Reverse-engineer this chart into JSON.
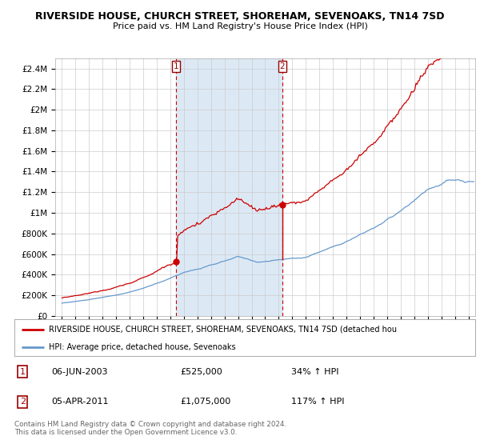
{
  "title": "RIVERSIDE HOUSE, CHURCH STREET, SHOREHAM, SEVENOAKS, TN14 7SD",
  "subtitle": "Price paid vs. HM Land Registry's House Price Index (HPI)",
  "background_color": "#ffffff",
  "plot_bg_color": "#ffffff",
  "grid_color": "#cccccc",
  "hpi_fill_color": "#dce9f5",
  "sale1_date_num": 2003.43,
  "sale1_price": 525000,
  "sale1_label": "06-JUN-2003",
  "sale1_hpi_pct": "34%",
  "sale2_date_num": 2011.26,
  "sale2_price": 1075000,
  "sale2_label": "05-APR-2011",
  "sale2_hpi_pct": "117%",
  "ylim": [
    0,
    2500000
  ],
  "xlim": [
    1994.5,
    2025.5
  ],
  "red_color": "#cc0000",
  "blue_color": "#6699cc",
  "legend_text1": "RIVERSIDE HOUSE, CHURCH STREET, SHOREHAM, SEVENOAKS, TN14 7SD (detached hou",
  "legend_text2": "HPI: Average price, detached house, Sevenoaks",
  "footer1": "Contains HM Land Registry data © Crown copyright and database right 2024.",
  "footer2": "This data is licensed under the Open Government Licence v3.0.",
  "yticks": [
    0,
    200000,
    400000,
    600000,
    800000,
    1000000,
    1200000,
    1400000,
    1600000,
    1800000,
    2000000,
    2200000,
    2400000
  ],
  "ytick_labels": [
    "£0",
    "£200K",
    "£400K",
    "£600K",
    "£800K",
    "£1M",
    "£1.2M",
    "£1.4M",
    "£1.6M",
    "£1.8M",
    "£2M",
    "£2.2M",
    "£2.4M"
  ],
  "xticks": [
    1995,
    1996,
    1997,
    1998,
    1999,
    2000,
    2001,
    2002,
    2003,
    2004,
    2005,
    2006,
    2007,
    2008,
    2009,
    2010,
    2011,
    2012,
    2013,
    2014,
    2015,
    2016,
    2017,
    2018,
    2019,
    2020,
    2021,
    2022,
    2023,
    2024,
    2025
  ]
}
